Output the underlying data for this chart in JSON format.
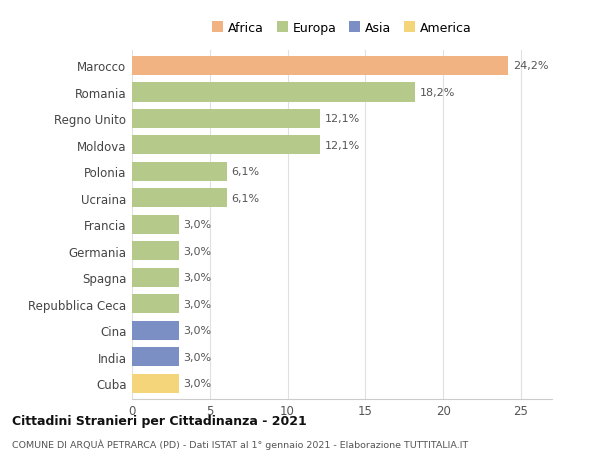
{
  "categories": [
    "Marocco",
    "Romania",
    "Regno Unito",
    "Moldova",
    "Polonia",
    "Ucraina",
    "Francia",
    "Germania",
    "Spagna",
    "Repubblica Ceca",
    "Cina",
    "India",
    "Cuba"
  ],
  "values": [
    24.2,
    18.2,
    12.1,
    12.1,
    6.1,
    6.1,
    3.0,
    3.0,
    3.0,
    3.0,
    3.0,
    3.0,
    3.0
  ],
  "labels": [
    "24,2%",
    "18,2%",
    "12,1%",
    "12,1%",
    "6,1%",
    "6,1%",
    "3,0%",
    "3,0%",
    "3,0%",
    "3,0%",
    "3,0%",
    "3,0%",
    "3,0%"
  ],
  "colors": [
    "#f2b383",
    "#b5c98a",
    "#b5c98a",
    "#b5c98a",
    "#b5c98a",
    "#b5c98a",
    "#b5c98a",
    "#b5c98a",
    "#b5c98a",
    "#b5c98a",
    "#7b8fc4",
    "#7b8fc4",
    "#f5d57a"
  ],
  "legend": [
    {
      "label": "Africa",
      "color": "#f2b383"
    },
    {
      "label": "Europa",
      "color": "#b5c98a"
    },
    {
      "label": "Asia",
      "color": "#7b8fc4"
    },
    {
      "label": "America",
      "color": "#f5d57a"
    }
  ],
  "xlim": [
    0,
    27
  ],
  "xticks": [
    0,
    5,
    10,
    15,
    20,
    25
  ],
  "title": "Cittadini Stranieri per Cittadinanza - 2021",
  "subtitle": "COMUNE DI ARQUÀ PETRARCA (PD) - Dati ISTAT al 1° gennaio 2021 - Elaborazione TUTTITALIA.IT",
  "background_color": "#ffffff",
  "grid_color": "#e0e0e0"
}
